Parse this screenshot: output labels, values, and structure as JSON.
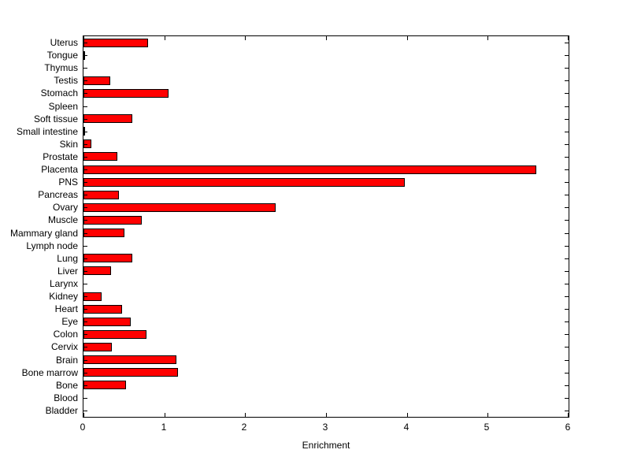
{
  "figure": {
    "background_color": "#FFFFFF"
  },
  "chart_data": {
    "type": "bar",
    "orientation": "horizontal",
    "title": "",
    "xlabel": "Enrichment",
    "ylabel": "",
    "xlim": [
      0,
      6
    ],
    "x_ticks": [
      0,
      1,
      2,
      3,
      4,
      5,
      6
    ],
    "grid": false,
    "legend": false,
    "bar_color": "#FF0000",
    "bar_edge_color": "#000000",
    "axis_color": "#000000",
    "categories": [
      "Uterus",
      "Tongue",
      "Thymus",
      "Testis",
      "Stomach",
      "Spleen",
      "Soft tissue",
      "Small intestine",
      "Skin",
      "Prostate",
      "Placenta",
      "PNS",
      "Pancreas",
      "Ovary",
      "Muscle",
      "Mammary gland",
      "Lymph node",
      "Lung",
      "Liver",
      "Larynx",
      "Kidney",
      "Heart",
      "Eye",
      "Colon",
      "Cervix",
      "Brain",
      "Bone marrow",
      "Bone",
      "Blood",
      "Bladder"
    ],
    "values": [
      0.8,
      0.02,
      0.0,
      0.33,
      1.05,
      0.0,
      0.6,
      0.02,
      0.1,
      0.42,
      5.6,
      3.97,
      0.44,
      2.38,
      0.72,
      0.51,
      0.0,
      0.6,
      0.34,
      0.0,
      0.22,
      0.48,
      0.58,
      0.78,
      0.35,
      1.15,
      1.17,
      0.53,
      0.0,
      0.0
    ]
  }
}
